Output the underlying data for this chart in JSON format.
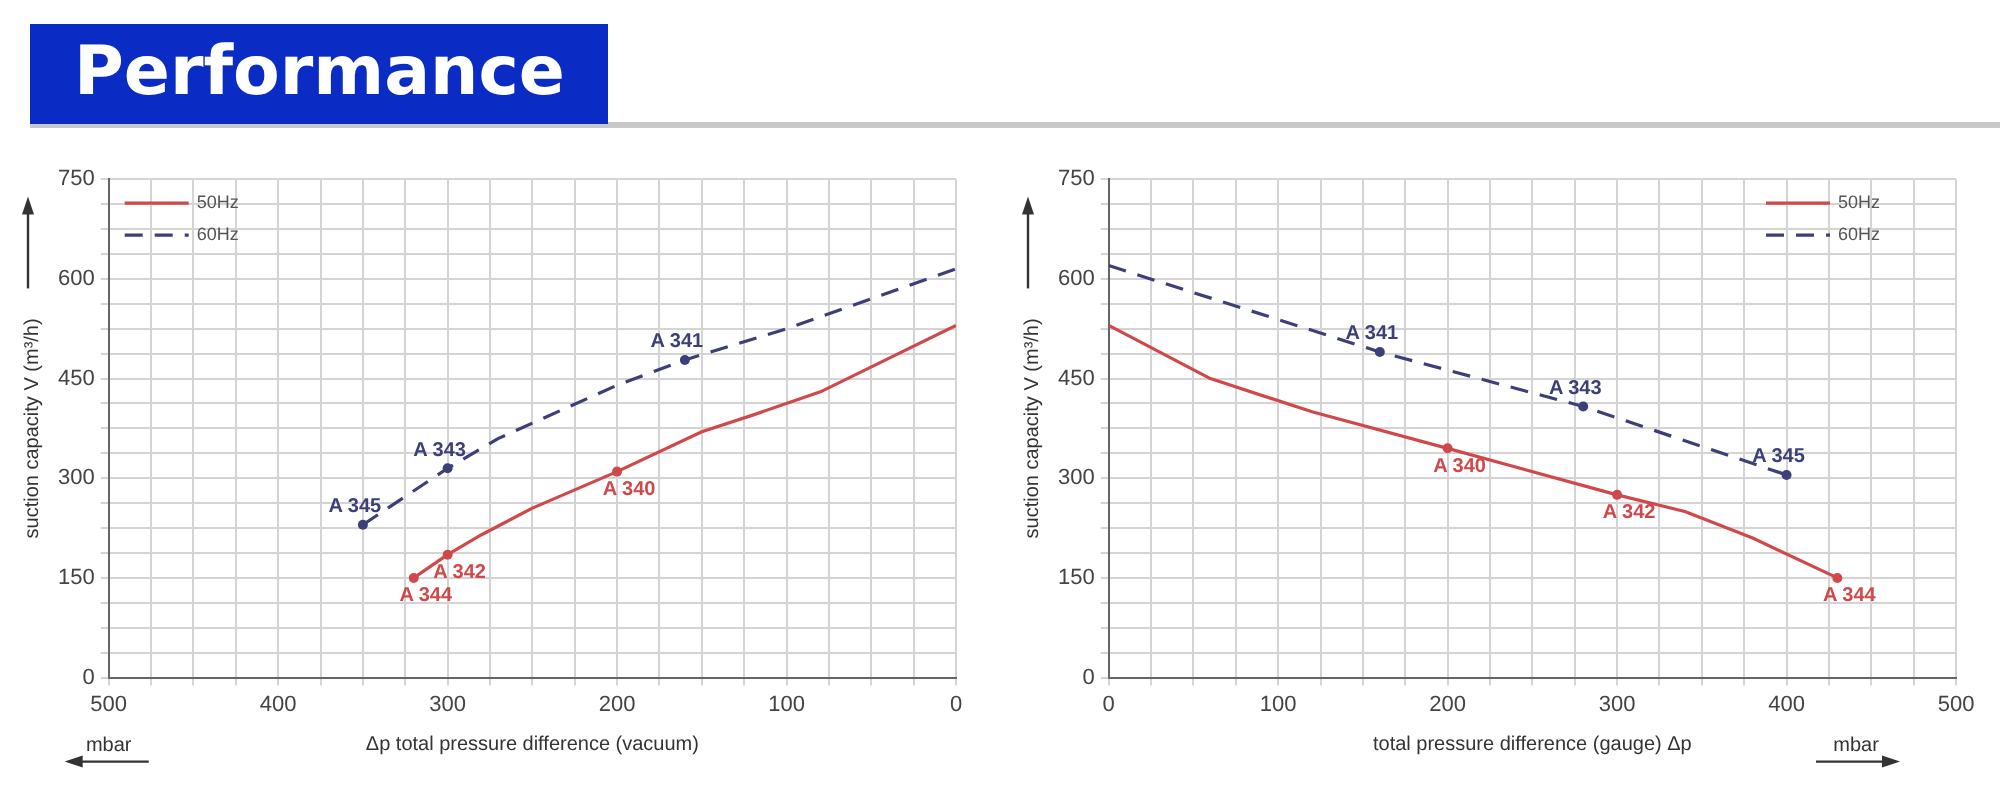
{
  "chart_data": [
    {
      "type": "line",
      "title": "Performance",
      "xlabel": "Δp total pressure difference (vacuum)",
      "ylabel": "suction capacity V (m³/h)",
      "xlim": [
        500,
        0
      ],
      "xticks": [
        500,
        {
          "value": 475,
          "label": null
        },
        {
          "value": 450,
          "label": null
        },
        {
          "value": 425,
          "label": null
        },
        400,
        {
          "value": 375,
          "label": null
        },
        {
          "value": 350,
          "label": null
        },
        {
          "value": 325,
          "label": null
        },
        300,
        {
          "value": 275,
          "label": null
        },
        {
          "value": 250,
          "label": null
        },
        {
          "value": 225,
          "label": null
        },
        200,
        {
          "value": 175,
          "label": null
        },
        {
          "value": 150,
          "label": null
        },
        {
          "value": 125,
          "label": null
        },
        100,
        {
          "value": 75,
          "label": null
        },
        {
          "value": 50,
          "label": null
        },
        {
          "value": 25,
          "label": null
        },
        0
      ],
      "ylim": [
        0,
        750
      ],
      "yticks": [
        0,
        {
          "value": 37.5,
          "label": null
        },
        {
          "value": 75,
          "label": null
        },
        {
          "value": 112.5,
          "label": null
        },
        150,
        {
          "value": 187.5,
          "label": null
        },
        {
          "value": 225,
          "label": null
        },
        {
          "value": 262.5,
          "label": null
        },
        300,
        {
          "value": 337.5,
          "label": null
        },
        {
          "value": 375,
          "label": null
        },
        {
          "value": 412.5,
          "label": null
        },
        450,
        {
          "value": 487.5,
          "label": null
        },
        {
          "value": 525,
          "label": null
        },
        {
          "value": 562.5,
          "label": null
        },
        600,
        {
          "value": 637.5,
          "label": null
        },
        {
          "value": 675,
          "label": null
        },
        {
          "value": 712.5,
          "label": null
        },
        750
      ],
      "grid": true,
      "legend": "top left",
      "series": [
        {
          "name": "50Hz",
          "color": "#d0494a",
          "line_style": "solid",
          "x": [
            320,
            300,
            280,
            250,
            200,
            150,
            120,
            80,
            40,
            0
          ],
          "values": [
            150,
            185,
            215,
            255,
            310,
            370,
            395,
            430,
            480,
            530
          ]
        },
        {
          "name": "60Hz",
          "color": "#3c3f78",
          "line_style": "dashed",
          "x": [
            350,
            300,
            270,
            200,
            160,
            100,
            50,
            0
          ],
          "values": [
            230,
            315,
            360,
            440,
            478,
            525,
            570,
            615
          ]
        }
      ],
      "annotations": [
        {
          "text": "A 344",
          "x": 320,
          "y": 150
        },
        {
          "text": "A 342",
          "x": 300,
          "y": 185
        },
        {
          "text": "A 340",
          "x": 200,
          "y": 310
        },
        {
          "text": "A 345",
          "x": 350,
          "y": 230
        },
        {
          "text": "A 343",
          "x": 300,
          "y": 315
        },
        {
          "text": "A 341",
          "x": 160,
          "y": 478
        },
        "mbar"
      ]
    },
    {
      "type": "line",
      "xlabel": "total pressure difference (gauge) Δp",
      "ylabel": "suction capacity V (m³/h)",
      "xlim": [
        0,
        500
      ],
      "xticks": [
        0,
        {
          "value": 25,
          "label": null
        },
        {
          "value": 50,
          "label": null
        },
        {
          "value": 75,
          "label": null
        },
        100,
        {
          "value": 125,
          "label": null
        },
        {
          "value": 150,
          "label": null
        },
        {
          "value": 175,
          "label": null
        },
        200,
        {
          "value": 225,
          "label": null
        },
        {
          "value": 250,
          "label": null
        },
        {
          "value": 275,
          "label": null
        },
        300,
        {
          "value": 325,
          "label": null
        },
        {
          "value": 350,
          "label": null
        },
        {
          "value": 375,
          "label": null
        },
        400,
        {
          "value": 425,
          "label": null
        },
        {
          "value": 450,
          "label": null
        },
        {
          "value": 475,
          "label": null
        },
        500
      ],
      "ylim": [
        0,
        750
      ],
      "yticks": [
        0,
        {
          "value": 37.5,
          "label": null
        },
        {
          "value": 75,
          "label": null
        },
        {
          "value": 112.5,
          "label": null
        },
        150,
        {
          "value": 187.5,
          "label": null
        },
        {
          "value": 225,
          "label": null
        },
        {
          "value": 262.5,
          "label": null
        },
        300,
        {
          "value": 337.5,
          "label": null
        },
        {
          "value": 375,
          "label": null
        },
        {
          "value": 412.5,
          "label": null
        },
        450,
        {
          "value": 487.5,
          "label": null
        },
        {
          "value": 525,
          "label": null
        },
        {
          "value": 562.5,
          "label": null
        },
        600,
        {
          "value": 637.5,
          "label": null
        },
        {
          "value": 675,
          "label": null
        },
        {
          "value": 712.5,
          "label": null
        },
        750
      ],
      "grid": true,
      "legend": "top right",
      "series": [
        {
          "name": "50Hz",
          "color": "#d0494a",
          "line_style": "solid",
          "x": [
            0,
            60,
            120,
            200,
            300,
            340,
            380,
            430
          ],
          "values": [
            530,
            450,
            400,
            345,
            275,
            250,
            210,
            150
          ]
        },
        {
          "name": "60Hz",
          "color": "#3c3f78",
          "line_style": "dashed",
          "x": [
            0,
            160,
            280,
            400
          ],
          "values": [
            620,
            490,
            408,
            305
          ]
        }
      ],
      "annotations": [
        {
          "text": "A 341",
          "x": 160,
          "y": 490
        },
        {
          "text": "A 343",
          "x": 280,
          "y": 408
        },
        {
          "text": "A 345",
          "x": 400,
          "y": 305
        },
        {
          "text": "A 340",
          "x": 200,
          "y": 345
        },
        {
          "text": "A 342",
          "x": 300,
          "y": 275
        },
        {
          "text": "A 344",
          "x": 430,
          "y": 150
        },
        "mbar"
      ]
    }
  ]
}
